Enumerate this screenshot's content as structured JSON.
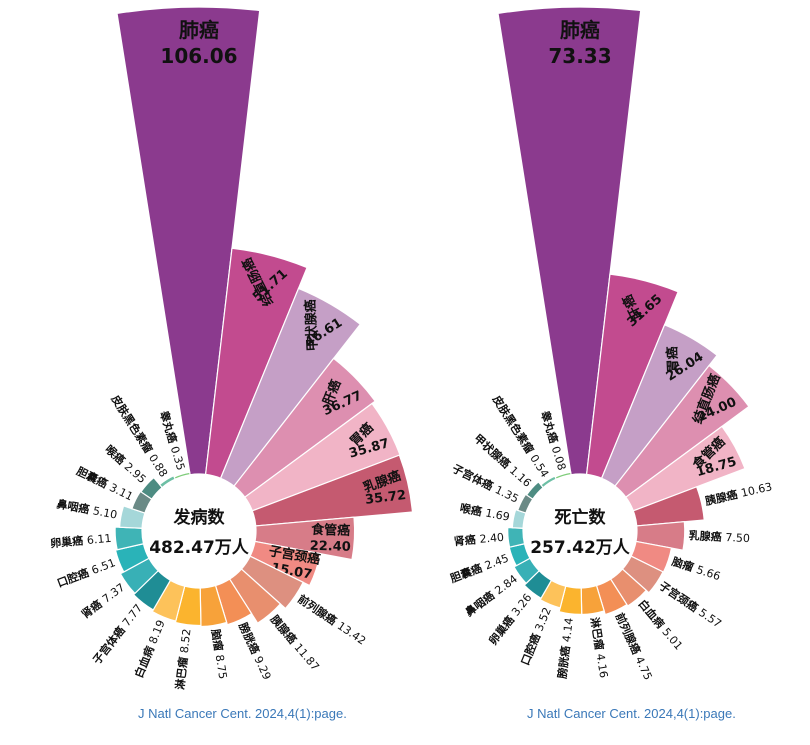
{
  "chart_data": [
    {
      "type": "polar-bar",
      "center_label": "发病数",
      "center_value": "482.47万人",
      "citation": "J Natl Cancer Cent. 2024,4(1):page.",
      "categories": [
        "肺癌",
        "结直肠癌",
        "甲状腺癌",
        "肝癌",
        "胃癌",
        "乳腺癌",
        "食管癌",
        "子宫颈癌",
        "前列腺癌",
        "胰腺癌",
        "膀胱癌",
        "脑瘤",
        "淋巴瘤",
        "白血病",
        "子宫体癌",
        "肾癌",
        "口腔癌",
        "卵巢癌",
        "鼻咽癌",
        "胆囊癌",
        "喉癌",
        "皮肤黑色素瘤",
        "睾丸癌"
      ],
      "values": [
        106.06,
        51.71,
        46.61,
        36.77,
        35.87,
        35.72,
        22.4,
        15.07,
        13.42,
        11.87,
        9.29,
        8.75,
        8.52,
        8.19,
        7.77,
        7.37,
        6.51,
        6.11,
        5.1,
        3.11,
        2.95,
        0.88,
        0.35
      ],
      "value_labels": [
        "106.06",
        "51.71",
        "46.61",
        "36.77",
        "35.87",
        "35.72",
        "22.40",
        "15.07",
        "13.42",
        "11.87",
        "9.29",
        "8.75",
        "8.52",
        "8.19",
        "7.77",
        "7.37",
        "6.51",
        "6.11",
        "5.10",
        "3.11",
        "2.95",
        "0.88",
        "0.35"
      ],
      "colors": [
        "#8b3a8e",
        "#c24b8f",
        "#c59fc6",
        "#dd8fb0",
        "#f1b4c6",
        "#c55a70",
        "#d77c88",
        "#f08a83",
        "#dd9080",
        "#e88f6e",
        "#f38f56",
        "#f7a23a",
        "#fbb42e",
        "#fdc25a",
        "#1f8d95",
        "#38b0b6",
        "#2ab3b8",
        "#3fb4b6",
        "#a5d7d9",
        "#6a8a86",
        "#4d8c82",
        "#6dbfa5",
        "#7ecc7a"
      ]
    },
    {
      "type": "polar-bar",
      "center_label": "死亡数",
      "center_value": "257.42万人",
      "citation": "J Natl Cancer Cent. 2024,4(1):page.",
      "categories": [
        "肺癌",
        "肝癌",
        "胃癌",
        "结直肠癌",
        "食管癌",
        "胰腺癌",
        "乳腺癌",
        "脑瘤",
        "子宫颈癌",
        "白血病",
        "前列腺癌",
        "淋巴瘤",
        "膀胱癌",
        "口腔癌",
        "卵巢癌",
        "鼻咽癌",
        "胆囊癌",
        "肾癌",
        "喉癌",
        "子宫体癌",
        "甲状腺癌",
        "皮肤黑色素瘤",
        "睾丸癌"
      ],
      "values": [
        73.33,
        31.65,
        26.04,
        24.0,
        18.75,
        10.63,
        7.5,
        5.66,
        5.57,
        5.01,
        4.75,
        4.16,
        4.14,
        3.52,
        3.26,
        2.84,
        2.45,
        2.4,
        1.69,
        1.35,
        1.16,
        0.54,
        0.08
      ],
      "value_labels": [
        "73.33",
        "31.65",
        "26.04",
        "24.00",
        "18.75",
        "10.63",
        "7.50",
        "5.66",
        "5.57",
        "5.01",
        "4.75",
        "4.16",
        "4.14",
        "3.52",
        "3.26",
        "2.84",
        "2.45",
        "2.40",
        "1.69",
        "1.35",
        "1.16",
        "0.54",
        "0.08"
      ],
      "colors": [
        "#8b3a8e",
        "#c24b8f",
        "#c59fc6",
        "#dd8fb0",
        "#f1b4c6",
        "#c55a70",
        "#d77c88",
        "#f08a83",
        "#dd9080",
        "#e88f6e",
        "#f38f56",
        "#f7a23a",
        "#fbb42e",
        "#fdc25a",
        "#1f8d95",
        "#38b0b6",
        "#2ab3b8",
        "#3fb4b6",
        "#a5d7d9",
        "#6a8a86",
        "#4d8c82",
        "#6dbfa5",
        "#7ecc7a"
      ]
    }
  ]
}
